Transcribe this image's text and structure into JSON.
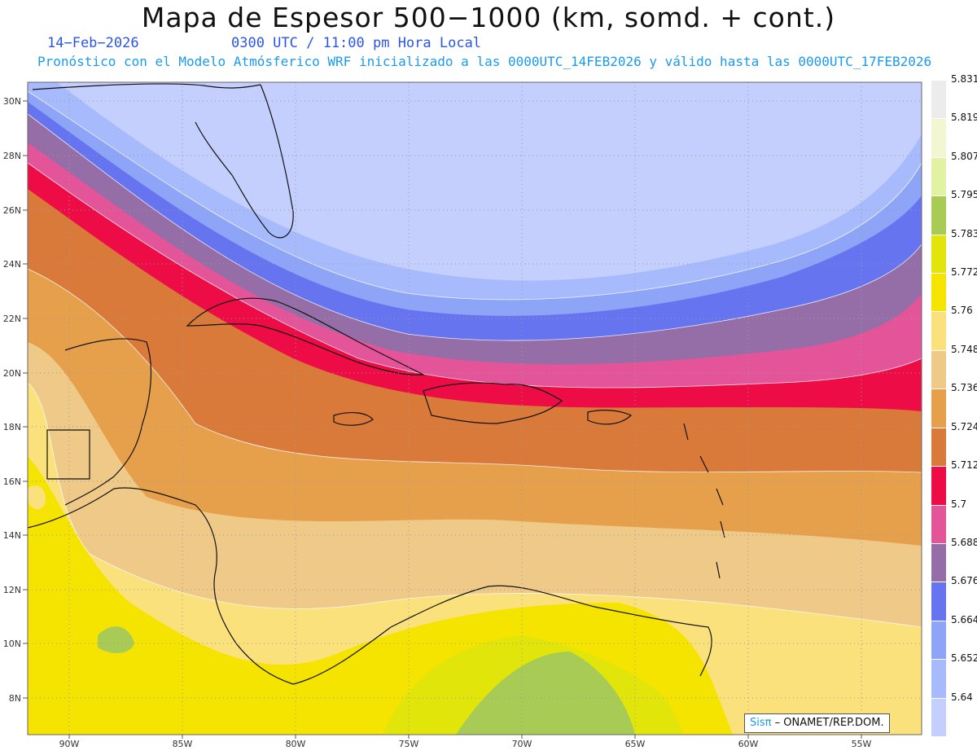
{
  "header": {
    "title": "Mapa de Espesor 500−1000 (km, somd. + cont.)",
    "date": "14−Feb−2026",
    "time": "0300 UTC / 11:00 pm Hora Local",
    "description": "Pronóstico con el Modelo Atmósferico WRF inicializado a las 0000UTC_14FEB2026 y válido hasta las  0000UTC_17FEB2026"
  },
  "map": {
    "lat_labels": [
      "30N",
      "28N",
      "26N",
      "24N",
      "22N",
      "20N",
      "18N",
      "16N",
      "14N",
      "12N",
      "10N",
      "8N"
    ],
    "lon_labels": [
      "90W",
      "85W",
      "80W",
      "75W",
      "70W",
      "65W",
      "60W",
      "55W"
    ],
    "grid": "dotted"
  },
  "legend": {
    "levels": [
      "5.64",
      "5.652",
      "5.664",
      "5.676",
      "5.688",
      "5.7",
      "5.712",
      "5.724",
      "5.736",
      "5.748",
      "5.76",
      "5.772",
      "5.783",
      "5.795",
      "5.807",
      "5.819",
      "5.831"
    ],
    "colors": [
      "#c4cffd",
      "#a7bafb",
      "#8ea5f7",
      "#6674f0",
      "#956ea8",
      "#e45498",
      "#ee0c46",
      "#da7a3a",
      "#e6a04b",
      "#eec987",
      "#fbe17c",
      "#f5e300",
      "#e2e50a",
      "#a8cb56",
      "#e1f3a3",
      "#f2f7d2",
      "#ececec"
    ]
  },
  "credit": {
    "logo": "Sisπ",
    "org": " – ONAMET/REP.DOM."
  }
}
